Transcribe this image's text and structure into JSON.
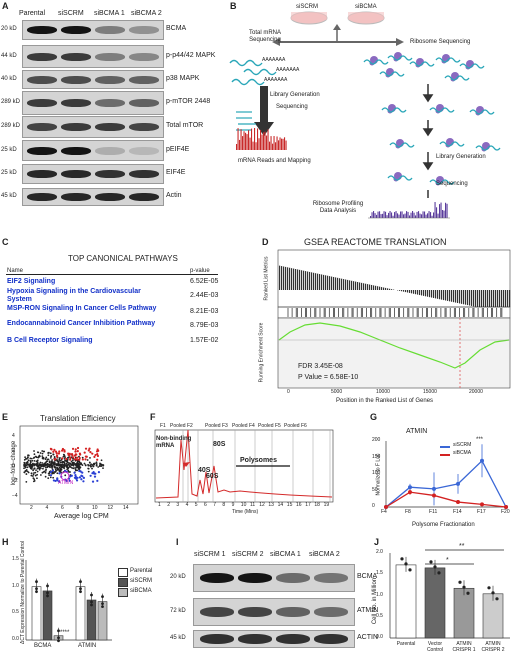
{
  "panel_labels": {
    "a": "A",
    "b": "B",
    "c": "C",
    "d": "D",
    "e": "E",
    "f": "F",
    "g": "G",
    "h": "H",
    "i": "I",
    "j": "J"
  },
  "panel_a": {
    "lanes": [
      "Parental",
      "siSCRM",
      "siBCMA 1",
      "siBCMA 2"
    ],
    "blots": [
      {
        "mw": "20 kD",
        "protein": "BCMA"
      },
      {
        "mw": "44 kD",
        "protein": "p-p44/42 MAPK"
      },
      {
        "mw": "40 kD",
        "protein": "p38 MAPK"
      },
      {
        "mw": "289 kD",
        "protein": "p-mTOR 2448"
      },
      {
        "mw": "289 kD",
        "protein": "Total mTOR"
      },
      {
        "mw": "25 kD",
        "protein": "pEIF4E"
      },
      {
        "mw": "25 kD",
        "protein": "EIF4E"
      },
      {
        "mw": "45 kD",
        "protein": "Actin"
      }
    ]
  },
  "panel_b": {
    "dish1": "siSCRM",
    "dish2": "siBCMA",
    "left_title": "Total mRNA Sequencing",
    "right_title": "Ribosome Sequencing",
    "lib_gen_left": "Library Generation",
    "seq_left": "Sequencing",
    "mapping": "mRNA Reads and Mapping",
    "lib_gen_right": "Library Generation",
    "seq_right": "Sequencing",
    "profiling": "Ribosome Profiling Data Analysis",
    "polyA": "AAAAAAA"
  },
  "panel_c": {
    "title": "TOP CANONICAL PATHWAYS",
    "header_name": "Name",
    "header_p": "p-value",
    "rows": [
      {
        "name": "EIF2 Signaling",
        "p": "6.52E-05"
      },
      {
        "name": "Hypoxia Signaling in the Cardiovascular System",
        "p": "2.44E-03"
      },
      {
        "name": "MSP-RON Signaling In Cancer Cells Pathway",
        "p": "8.21E-03"
      },
      {
        "name": "Endocannabinoid Cancer Inhibition Pathway",
        "p": "8.79E-03"
      },
      {
        "name": "B Cell Receptor Signaling",
        "p": "1.57E-02"
      }
    ]
  },
  "panel_d": {
    "title": "GSEA REACTOME TRANSLATION",
    "ylabel_top": "Ranked List Metrics",
    "ylabel_bottom": "Running Enrichment Score",
    "xlabel": "Position in the Ranked List of Genes",
    "fdr": "FDR 3.45E-08",
    "pval": "P Value = 6.58E-10",
    "xticks": [
      "0",
      "5000",
      "10000",
      "15000",
      "20000"
    ]
  },
  "panel_e": {
    "title": "Translation Efficiency",
    "xlabel": "Average log CPM",
    "ylabel": "log−fold−change",
    "xticks": [
      "2",
      "4",
      "6",
      "8",
      "10",
      "12",
      "14"
    ],
    "yticks": [
      "4",
      "2",
      "0",
      "−2",
      "−4"
    ],
    "gene": "ATMIN"
  },
  "panel_f": {
    "xlabel": "Time (Mins)",
    "fractions": [
      "F1",
      "Pooled F2",
      "Pooled F3",
      "Pooled F4",
      "Pooled F5",
      "Pooled F6"
    ],
    "xticks": [
      "1",
      "2",
      "3",
      "4",
      "5",
      "6",
      "7",
      "8",
      "9",
      "10",
      "11",
      "12",
      "13",
      "14",
      "15",
      "16",
      "17",
      "18",
      "19"
    ],
    "labels": {
      "nonbinding": "Non-binding mRNA",
      "s40": "40S",
      "s60": "60S",
      "s80": "80S",
      "poly": "Polysomes"
    }
  },
  "panel_g": {
    "title": "ATMIN",
    "ylabel": "Normalize to F Luc",
    "xlabel": "Polysome Fractionation",
    "xticks": [
      "F4",
      "F8",
      "F11",
      "F14",
      "F17",
      "F20"
    ],
    "yticks": [
      "0",
      "50",
      "100",
      "150",
      "200"
    ],
    "sig": "***",
    "chart_data": {
      "type": "line",
      "categories": [
        "F4",
        "F8",
        "F11",
        "F14",
        "F17",
        "F20"
      ],
      "series": [
        {
          "name": "siSCRM",
          "values": [
            0,
            60,
            55,
            70,
            140,
            0
          ],
          "err": [
            0,
            10,
            50,
            30,
            50,
            0
          ],
          "color": "#3a67d6"
        },
        {
          "name": "siBCMA",
          "values": [
            0,
            45,
            35,
            15,
            8,
            0
          ],
          "err": [
            0,
            8,
            5,
            5,
            3,
            0
          ],
          "color": "#d32222"
        }
      ],
      "ylim": [
        0,
        200
      ]
    }
  },
  "panel_h": {
    "ylabel": "ΔCT Expression Normalize to Parental Control",
    "yticks": [
      "0.0",
      "0.5",
      "1.0",
      "1.5"
    ],
    "sig": "****",
    "chart_data": {
      "type": "bar",
      "categories": [
        "BCMA",
        "ATMIN"
      ],
      "series": [
        {
          "name": "Parental",
          "values": [
            1.0,
            1.0
          ],
          "color": "#ffffff"
        },
        {
          "name": "siSCRM",
          "values": [
            0.92,
            0.75
          ],
          "color": "#555555"
        },
        {
          "name": "siBCMA",
          "values": [
            0.08,
            0.72
          ],
          "color": "#bbbbbb"
        }
      ],
      "ylim": [
        0,
        1.5
      ]
    }
  },
  "panel_i": {
    "lanes": [
      "siSCRM 1",
      "siSCRM 2",
      "siBCMA 1",
      "siBCMA 2"
    ],
    "blots": [
      {
        "mw": "20 kD",
        "protein": "BCMA"
      },
      {
        "mw": "72 kD",
        "protein": "ATMIN"
      },
      {
        "mw": "45 kD",
        "protein": "ACTIN"
      }
    ]
  },
  "panel_j": {
    "ylabel": "Cell No. in Million",
    "yticks": [
      "0.0",
      "0.5",
      "1.0",
      "1.5",
      "2.0"
    ],
    "sig1": "**",
    "sig2": "*",
    "chart_data": {
      "type": "bar",
      "categories": [
        "Parental",
        "Vector Control",
        "ATMIN CRISPR 1",
        "ATMIN CRISPR 2"
      ],
      "values": [
        1.72,
        1.65,
        1.17,
        1.04
      ],
      "colors": [
        "#ffffff",
        "#666666",
        "#999999",
        "#cccccc"
      ],
      "ylim": [
        0,
        2.0
      ]
    }
  }
}
